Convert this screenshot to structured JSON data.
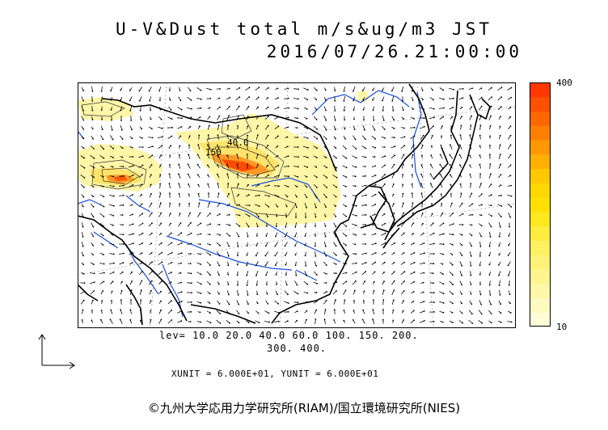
{
  "title": {
    "line1": "U-V&Dust total m/s&ug/m3 JST",
    "line2": "2016/07/26.21:00:00"
  },
  "contour_labels": [
    "40.0",
    "150"
  ],
  "colorbar": {
    "max_label": "400",
    "min_label": "10",
    "colors": [
      "#fffdd8",
      "#fffac0",
      "#fff8a8",
      "#fff590",
      "#fff278",
      "#fff060",
      "#ffec40",
      "#ffe820",
      "#ffe000",
      "#ffd800",
      "#ffc800",
      "#ffb000",
      "#ff9800",
      "#ff8000",
      "#ff6800",
      "#ff5000",
      "#ff3800"
    ]
  },
  "levels": {
    "line1": "lev= 10.0 20.0 40.0 60.0 100. 150. 200.",
    "line2": "300. 400."
  },
  "units": "XUNIT = 6.000E+01, YUNIT = 6.000E+01",
  "copyright": "©九州大学応用力学研究所(RIAM)/国立環境研究所(NIES)",
  "colors": {
    "coast": "#000000",
    "river": "#1a4fd8",
    "graticule": "#888888",
    "dust_light": "#fff6a8",
    "dust_mid": "#ffd43a",
    "dust_high": "#ff8a1a",
    "dust_max": "#ff4a00"
  }
}
